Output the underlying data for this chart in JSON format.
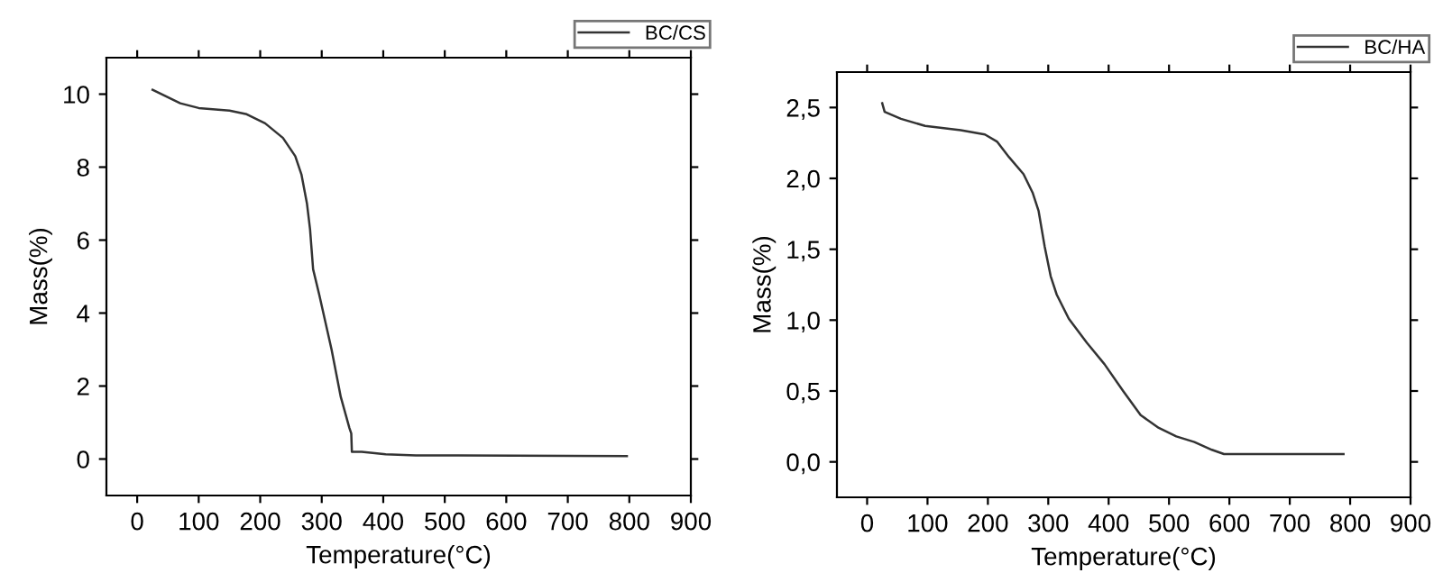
{
  "chart_data": [
    {
      "type": "line",
      "xlabel": "Temperature(°C)",
      "ylabel": "Mass(%)",
      "xlim": [
        -50,
        900
      ],
      "ylim": [
        -1,
        11
      ],
      "xticks": [
        0,
        100,
        200,
        300,
        400,
        500,
        600,
        700,
        800,
        900
      ],
      "yticks": [
        0,
        2,
        4,
        6,
        8,
        10
      ],
      "legend": "top right",
      "grid": false,
      "series": [
        {
          "name": "BC/CS",
          "color": "#333333",
          "x": [
            25,
            70,
            100,
            150,
            178,
            208,
            237,
            257,
            267,
            276,
            281,
            286,
            296,
            316,
            331,
            345,
            348,
            349,
            365,
            404,
            453,
            796
          ],
          "values": [
            10.12,
            9.75,
            9.62,
            9.55,
            9.45,
            9.2,
            8.8,
            8.3,
            7.8,
            7.0,
            6.3,
            5.2,
            4.5,
            3.0,
            1.7,
            0.85,
            0.7,
            0.2,
            0.2,
            0.13,
            0.1,
            0.08
          ]
        }
      ]
    },
    {
      "type": "line",
      "xlabel": "Temperature(°C)",
      "ylabel": "Mass(%)",
      "xlim": [
        -50,
        900
      ],
      "ylim": [
        -0.25,
        2.75
      ],
      "xticks": [
        0,
        100,
        200,
        300,
        400,
        500,
        600,
        700,
        800,
        900
      ],
      "yticks": [
        {
          "value": 0,
          "label": "0,0"
        },
        {
          "value": 0.5,
          "label": "0,5"
        },
        {
          "value": 1,
          "label": "1,0"
        },
        {
          "value": 1.5,
          "label": "1,5"
        },
        {
          "value": 2,
          "label": "2,0"
        },
        {
          "value": 2.5,
          "label": "2,5"
        }
      ],
      "legend": "top right",
      "grid": false,
      "series": [
        {
          "name": "BC/HA",
          "color": "#333333",
          "x": [
            25,
            29,
            56,
            96,
            155,
            195,
            215,
            235,
            259,
            274,
            284,
            294,
            304,
            314,
            334,
            364,
            393,
            424,
            453,
            483,
            512,
            542,
            571,
            591,
            789
          ],
          "values": [
            2.53,
            2.47,
            2.42,
            2.37,
            2.34,
            2.31,
            2.26,
            2.15,
            2.03,
            1.9,
            1.77,
            1.52,
            1.31,
            1.18,
            1.01,
            0.84,
            0.69,
            0.5,
            0.33,
            0.24,
            0.18,
            0.14,
            0.085,
            0.055,
            0.055
          ]
        }
      ]
    }
  ]
}
